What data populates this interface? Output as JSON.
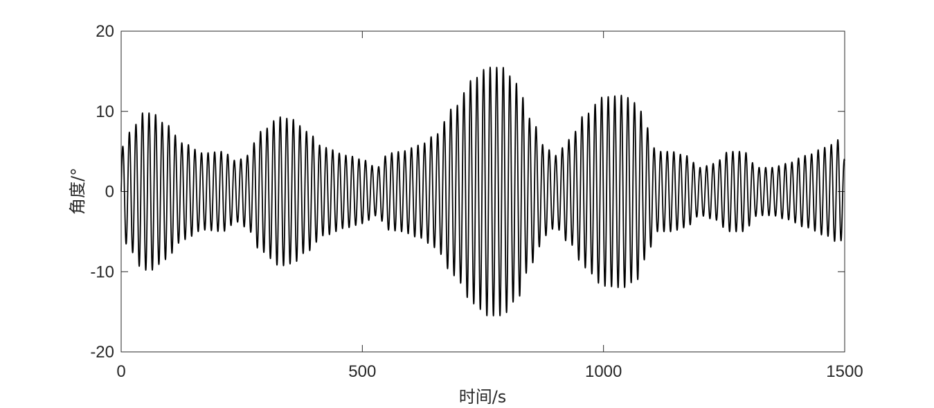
{
  "chart_data": {
    "type": "line",
    "title": "",
    "xlabel": "时间/s",
    "ylabel": "角度/°",
    "xlim": [
      0,
      1500
    ],
    "ylim": [
      -20,
      20
    ],
    "xticks": [
      0,
      500,
      1000,
      1500
    ],
    "yticks": [
      -20,
      -10,
      0,
      10,
      20
    ],
    "xtick_labels": [
      "0",
      "500",
      "1000",
      "1500"
    ],
    "ytick_labels": [
      "-20",
      "-10",
      "0",
      "10",
      "20"
    ],
    "grid": false,
    "legend": "none",
    "series": [
      {
        "color": "#000000",
        "oscillation_period": 13.6,
        "envelope": {
          "x": [
            0,
            20,
            45,
            65,
            90,
            130,
            170,
            210,
            240,
            260,
            290,
            330,
            355,
            385,
            420,
            470,
            500,
            530,
            555,
            580,
            620,
            650,
            690,
            730,
            760,
            790,
            820,
            850,
            880,
            900,
            930,
            960,
            1000,
            1040,
            1070,
            1090,
            1110,
            1140,
            1170,
            1200,
            1230,
            1260,
            1290,
            1320,
            1350,
            1380,
            1420,
            1460,
            1490,
            1500
          ],
          "amplitude": [
            5.5,
            7.5,
            9.8,
            9.8,
            8.5,
            6.0,
            4.8,
            5.0,
            3.8,
            4.5,
            7.5,
            9.3,
            9.0,
            7.5,
            5.5,
            4.5,
            4.0,
            3.0,
            4.8,
            5.0,
            5.8,
            7.0,
            10.5,
            14.0,
            15.5,
            15.5,
            13.5,
            9.0,
            5.5,
            4.5,
            6.5,
            9.5,
            11.8,
            12.0,
            11.0,
            8.0,
            5.0,
            5.0,
            4.5,
            3.0,
            3.5,
            5.0,
            5.0,
            3.0,
            3.0,
            3.5,
            4.5,
            5.5,
            6.5,
            4.0
          ]
        }
      }
    ]
  }
}
